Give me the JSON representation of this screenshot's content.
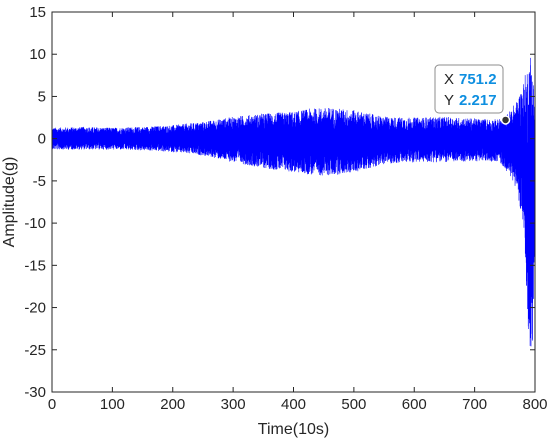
{
  "chart_data": {
    "type": "line",
    "title": "",
    "xlabel": "Time(10s)",
    "ylabel": "Amplitude(g)",
    "xlim": [
      0,
      800
    ],
    "ylim": [
      -30,
      15
    ],
    "xticks": [
      0,
      100,
      200,
      300,
      400,
      500,
      600,
      700,
      800
    ],
    "yticks": [
      15,
      10,
      5,
      0,
      -5,
      -10,
      -15,
      -20,
      -25,
      -30
    ],
    "grid": false,
    "series_color": "#0000ff",
    "envelope": {
      "x": [
        0,
        50,
        100,
        150,
        200,
        250,
        300,
        350,
        400,
        430,
        460,
        500,
        550,
        600,
        650,
        700,
        740,
        755,
        770,
        780,
        785,
        790,
        793,
        796,
        800
      ],
      "upper": [
        1.3,
        1.4,
        1.3,
        1.4,
        1.6,
        2.0,
        2.6,
        3.0,
        3.2,
        3.6,
        3.7,
        3.4,
        2.6,
        2.5,
        2.6,
        2.4,
        2.3,
        3.0,
        4.5,
        6.5,
        8.0,
        9.5,
        10.5,
        9.0,
        5.0
      ],
      "lower": [
        -1.3,
        -1.3,
        -1.3,
        -1.4,
        -1.6,
        -2.0,
        -2.8,
        -3.5,
        -4.0,
        -4.3,
        -4.4,
        -4.0,
        -3.0,
        -2.8,
        -2.8,
        -2.7,
        -2.7,
        -4.0,
        -6.0,
        -10.0,
        -18.0,
        -24.0,
        -25.0,
        -25.0,
        -12.0
      ]
    },
    "datatip": {
      "x_label": "X",
      "x_value": "751.2",
      "y_label": "Y",
      "y_value": "2.217",
      "x": 751.2,
      "y": 2.217
    }
  }
}
